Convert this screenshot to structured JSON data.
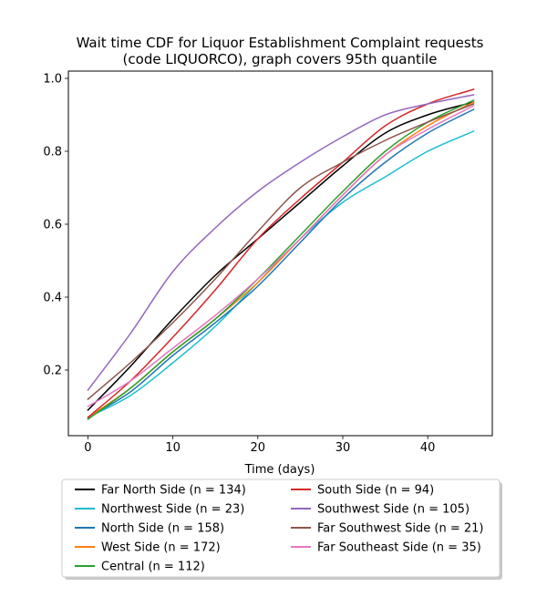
{
  "chart_data": {
    "type": "line",
    "title": "Wait time CDF for Liquor Establishment Complaint  requests\n(code LIQUORCO), graph covers 95th quantile",
    "xlabel": "Time (days)",
    "ylabel": "",
    "xlim": [
      -2.3,
      47.6
    ],
    "ylim": [
      0.02,
      1.02
    ],
    "x_ticks": [
      0,
      10,
      20,
      30,
      40
    ],
    "y_ticks": [
      0.2,
      0.4,
      0.6,
      0.8,
      1.0
    ],
    "x_tick_labels": [
      "0",
      "10",
      "20",
      "30",
      "40"
    ],
    "y_tick_labels": [
      "0.2",
      "0.4",
      "0.6",
      "0.8",
      "1.0"
    ],
    "grid": false,
    "legend_placement": "below",
    "legend_columns": 2,
    "x": [
      0,
      5,
      10,
      15,
      20,
      25,
      30,
      35,
      40,
      45.4
    ],
    "series": [
      {
        "name": "Far North Side (n = 134)",
        "color": "#000000",
        "values": [
          0.09,
          0.21,
          0.34,
          0.46,
          0.56,
          0.66,
          0.76,
          0.85,
          0.9,
          0.935
        ]
      },
      {
        "name": "Northwest Side (n = 23)",
        "color": "#17becf",
        "values": [
          0.07,
          0.13,
          0.22,
          0.32,
          0.44,
          0.56,
          0.66,
          0.73,
          0.8,
          0.855
        ]
      },
      {
        "name": "North Side (n = 158)",
        "color": "#1f77b4",
        "values": [
          0.07,
          0.14,
          0.24,
          0.33,
          0.43,
          0.55,
          0.67,
          0.77,
          0.85,
          0.915
        ]
      },
      {
        "name": "West Side (n = 172)",
        "color": "#ff7f0e",
        "values": [
          0.07,
          0.15,
          0.25,
          0.34,
          0.44,
          0.56,
          0.68,
          0.79,
          0.87,
          0.935
        ]
      },
      {
        "name": "Central (n = 112)",
        "color": "#2ca02c",
        "values": [
          0.065,
          0.15,
          0.25,
          0.34,
          0.45,
          0.57,
          0.69,
          0.8,
          0.88,
          0.94
        ]
      },
      {
        "name": "South Side (n = 94)",
        "color": "#d62728",
        "values": [
          0.07,
          0.17,
          0.29,
          0.42,
          0.56,
          0.67,
          0.77,
          0.87,
          0.93,
          0.97
        ]
      },
      {
        "name": "Southwest Side (n = 105)",
        "color": "#9467bd",
        "values": [
          0.145,
          0.3,
          0.47,
          0.59,
          0.69,
          0.77,
          0.84,
          0.9,
          0.93,
          0.955
        ]
      },
      {
        "name": "Far Southwest Side (n = 21)",
        "color": "#8c564b",
        "values": [
          0.12,
          0.22,
          0.33,
          0.45,
          0.58,
          0.7,
          0.77,
          0.83,
          0.88,
          0.93
        ]
      },
      {
        "name": "Far Southeast Side (n = 35)",
        "color": "#e377c2",
        "values": [
          0.1,
          0.17,
          0.26,
          0.35,
          0.45,
          0.56,
          0.68,
          0.79,
          0.86,
          0.925
        ]
      }
    ]
  }
}
